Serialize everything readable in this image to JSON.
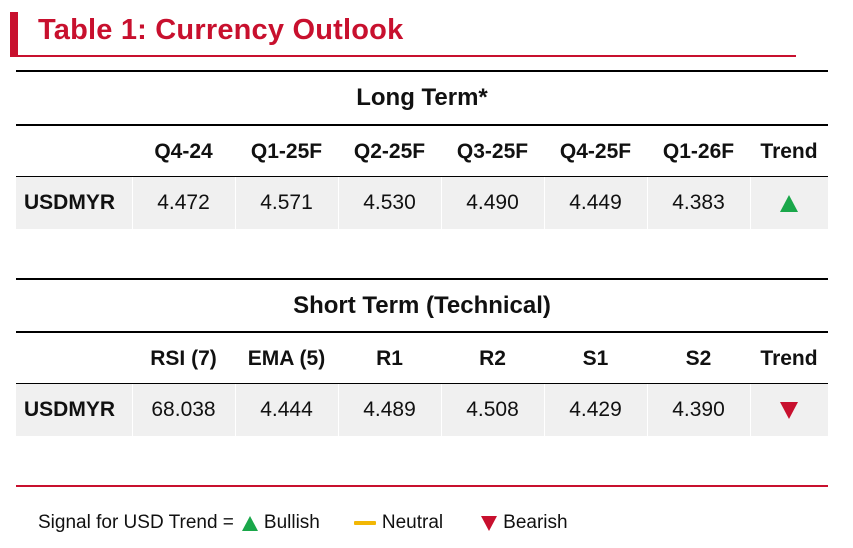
{
  "title": "Table 1: Currency Outlook",
  "long_term": {
    "heading": "Long Term*",
    "columns": [
      "",
      "Q4-24",
      "Q1-25F",
      "Q2-25F",
      "Q3-25F",
      "Q4-25F",
      "Q1-26F",
      "Trend"
    ],
    "row": {
      "label": "USDMYR",
      "values": [
        "4.472",
        "4.571",
        "4.530",
        "4.490",
        "4.449",
        "4.383"
      ],
      "trend": "up-triangle-icon"
    }
  },
  "short_term": {
    "heading": "Short Term (Technical)",
    "columns": [
      "",
      "RSI (7)",
      "EMA (5)",
      "R1",
      "R2",
      "S1",
      "S2",
      "Trend"
    ],
    "row": {
      "label": "USDMYR",
      "values": [
        "68.038",
        "4.444",
        "4.489",
        "4.508",
        "4.429",
        "4.390"
      ],
      "trend": "down-triangle-icon"
    }
  },
  "legend": {
    "prefix": "Signal for USD Trend =",
    "bullish": "Bullish",
    "neutral": "Neutral",
    "bearish": "Bearish"
  },
  "colors": {
    "accent": "#c8102e",
    "bullish": "#1aa74a",
    "neutral": "#f2b705",
    "bearish": "#c8102e",
    "row_fill": "#f0f0f0"
  }
}
